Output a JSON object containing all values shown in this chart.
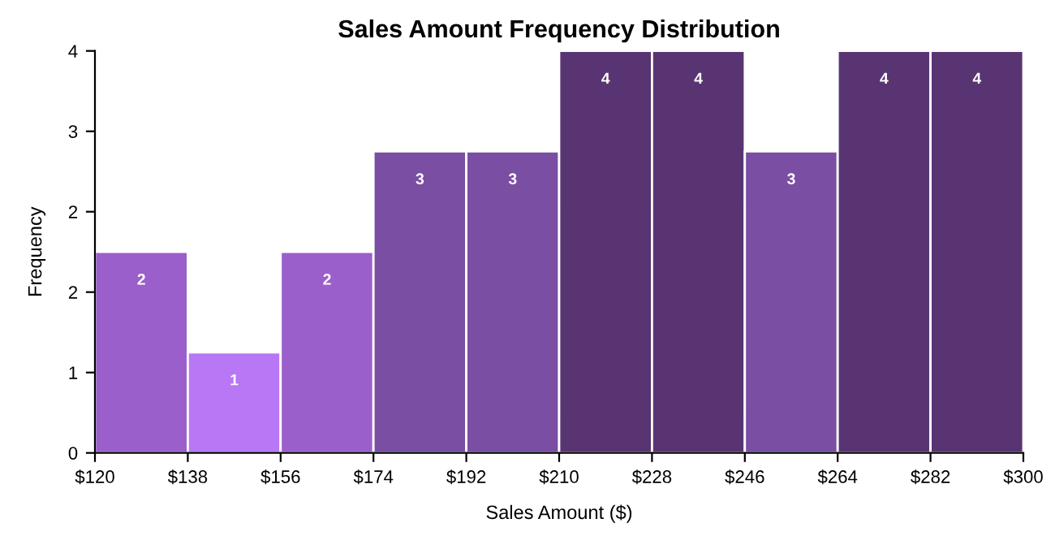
{
  "chart_data": {
    "type": "histogram",
    "title": "Sales Amount Frequency Distribution",
    "xlabel": "Sales Amount ($)",
    "ylabel": "Frequency",
    "bins": [
      120,
      138,
      156,
      174,
      192,
      210,
      228,
      246,
      264,
      282,
      300
    ],
    "values": [
      2,
      1,
      2,
      3,
      3,
      4,
      4,
      3,
      4,
      4
    ],
    "colors": [
      "#9b5fcb",
      "#b877f5",
      "#9b5fcb",
      "#7a4ea2",
      "#7a4ea2",
      "#583572",
      "#583572",
      "#7a4ea2",
      "#583572",
      "#583572"
    ],
    "xlim": [
      120,
      300
    ],
    "xticks": [
      {
        "value": 120,
        "label": "$120"
      },
      {
        "value": 138,
        "label": "$138"
      },
      {
        "value": 156,
        "label": "$156"
      },
      {
        "value": 174,
        "label": "$174"
      },
      {
        "value": 192,
        "label": "$192"
      },
      {
        "value": 210,
        "label": "$210"
      },
      {
        "value": 228,
        "label": "$228"
      },
      {
        "value": 246,
        "label": "$246"
      },
      {
        "value": 264,
        "label": "$264"
      },
      {
        "value": 282,
        "label": "$282"
      },
      {
        "value": 300,
        "label": "$300"
      }
    ],
    "ylim": [
      0,
      4
    ],
    "yticks": [
      0,
      {
        "value": 0.8,
        "label": "1"
      },
      {
        "value": 1.6,
        "label": "2"
      },
      {
        "value": 2.4,
        "label": "2"
      },
      {
        "value": 3.2,
        "label": "3"
      },
      4
    ],
    "data_labels": true,
    "grid": false
  }
}
